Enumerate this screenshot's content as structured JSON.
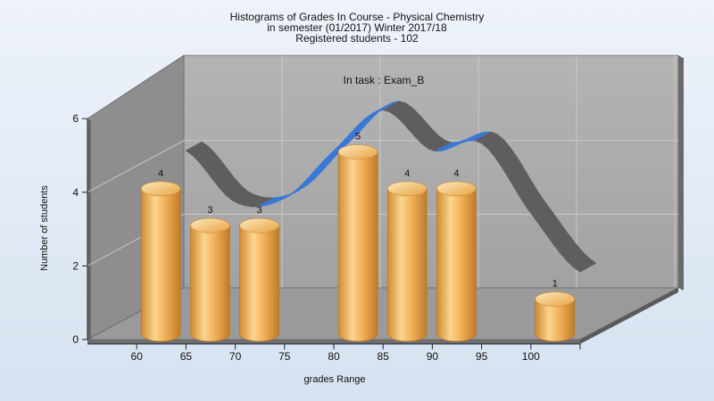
{
  "chart_data": {
    "type": "bar",
    "title_lines": [
      "Histograms of Grades  In Course - Physical Chemistry",
      "in semester  (01/2017) Winter 2017/18",
      "Registered students - 102"
    ],
    "subtitle": "In task : Exam_B",
    "xlabel": "grades Range",
    "ylabel": "Number of students",
    "ylim": [
      0,
      6
    ],
    "y_ticks": [
      "0",
      "2",
      "4",
      "6"
    ],
    "x_ticks": [
      "60",
      "65",
      "70",
      "75",
      "80",
      "85",
      "90",
      "95",
      "100"
    ],
    "values": [
      4,
      3,
      3,
      0,
      5,
      4,
      4,
      0,
      1
    ],
    "data_labels": [
      "4",
      "3",
      "3",
      "",
      "5",
      "4",
      "4",
      "",
      "1"
    ],
    "trend": [
      4.6,
      3.2,
      3.3,
      4.6,
      5.7,
      4.6,
      4.8,
      2.9,
      1.3
    ],
    "colors": {
      "bar_light": "#fde2a6",
      "bar_mid": "#f5b45a",
      "bar_dark": "#c9842d",
      "trend_front": "#3a78d6",
      "trend_back": "#5e5e5e",
      "wall": "#a6a6a6",
      "floor": "#8f8f8f"
    }
  }
}
